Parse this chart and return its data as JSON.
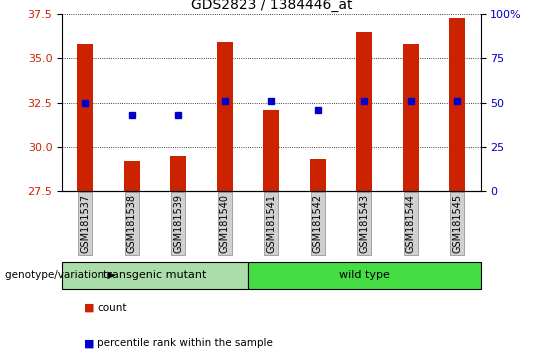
{
  "title": "GDS2823 / 1384446_at",
  "samples": [
    "GSM181537",
    "GSM181538",
    "GSM181539",
    "GSM181540",
    "GSM181541",
    "GSM181542",
    "GSM181543",
    "GSM181544",
    "GSM181545"
  ],
  "counts": [
    35.8,
    29.2,
    29.5,
    35.9,
    32.1,
    29.3,
    36.5,
    35.8,
    37.3
  ],
  "percentile_ranks": [
    50,
    43,
    43,
    51,
    51,
    46,
    51,
    51,
    51
  ],
  "ylim_left": [
    27.5,
    37.5
  ],
  "ylim_right": [
    0,
    100
  ],
  "yticks_left": [
    27.5,
    30.0,
    32.5,
    35.0,
    37.5
  ],
  "yticks_right": [
    0,
    25,
    50,
    75,
    100
  ],
  "bar_color": "#CC2200",
  "dot_color": "#0000CC",
  "group_label": "genotype/variation",
  "groups": [
    {
      "label": "transgenic mutant",
      "xstart": 0,
      "xend": 3,
      "color": "#AADDAA"
    },
    {
      "label": "wild type",
      "xstart": 4,
      "xend": 8,
      "color": "#44DD44"
    }
  ],
  "legend": [
    "count",
    "percentile rank within the sample"
  ],
  "tick_label_color_left": "#CC2200",
  "tick_label_color_right": "#0000BB",
  "title_fontsize": 10,
  "axis_fontsize": 8,
  "bar_width": 0.35
}
